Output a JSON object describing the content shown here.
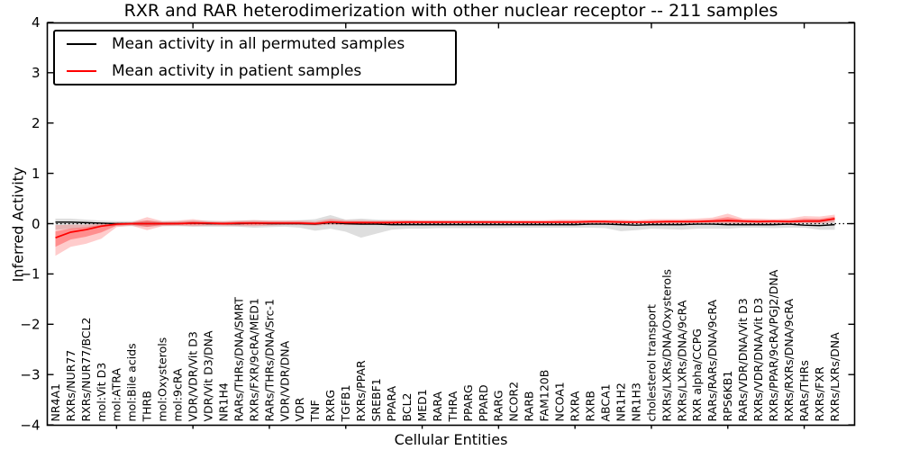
{
  "chart_data": {
    "type": "line",
    "title": "RXR and RAR heterodimerization with other nuclear receptor -- 211 samples",
    "xlabel": "Cellular Entities",
    "ylabel": "Inferred Activity",
    "ylim": [
      -4,
      4
    ],
    "yticks": [
      -4,
      -3,
      -2,
      -1,
      0,
      1,
      2,
      3,
      4
    ],
    "ytick_labels": [
      "−4",
      "−3",
      "−2",
      "−1",
      "0",
      "1",
      "2",
      "3",
      "4"
    ],
    "grid": false,
    "zero_line": {
      "y": 0,
      "style": "dotted",
      "color": "#000000"
    },
    "legend": {
      "position": "upper left",
      "entries": [
        {
          "label": "Mean activity in all permuted samples",
          "color": "#000000"
        },
        {
          "label": "Mean activity in patient samples",
          "color": "#ff0000"
        }
      ]
    },
    "categories": [
      "NR4A1",
      "RXRs/NUR77",
      "RXRs/NUR77/BCL2",
      "mol:Vit D3",
      "mol:ATRA",
      "mol:Bile acids",
      "THRB",
      "mol:Oxysterols",
      "mol:9cRA",
      "VDR/VDR/Vit D3",
      "VDR/Vit D3/DNA",
      "NR1H4",
      "RARs/THRs/DNA/SMRT",
      "RXRs/FXR/9cRA/MED1",
      "RARs/THRs/DNA/Src-1",
      "VDR/VDR/DNA",
      "VDR",
      "TNF",
      "RXRG",
      "TGFB1",
      "RXRs/PPAR",
      "SREBF1",
      "PPARA",
      "BCL2",
      "MED1",
      "RARA",
      "THRA",
      "PPARG",
      "PPARD",
      "RARG",
      "NCOR2",
      "RARB",
      "FAM120B",
      "NCOA1",
      "RXRA",
      "RXRB",
      "ABCA1",
      "NR1H2",
      "NR1H3",
      "cholesterol transport",
      "RXRs/LXRs/DNA/Oxysterols",
      "RXRs/LXRs/DNA/9cRA",
      "RXR alpha/CCPG",
      "RARs/RARs/DNA/9cRA",
      "RPS6KB1",
      "RARs/VDR/DNA/Vit D3",
      "RXRs/VDR/DNA/Vit D3",
      "RXRs/PPAR/9cRA/PGJ2/DNA",
      "RXRs/RXRs/DNA/9cRA",
      "RARs/THRs",
      "RXRs/FXR",
      "RXRs/LXRs/DNA"
    ],
    "series": [
      {
        "name": "Mean activity in all permuted samples",
        "color": "#000000",
        "band_color": "#999999",
        "values": [
          0.03,
          0.03,
          0.02,
          0.01,
          0,
          0,
          0,
          0,
          0,
          0.01,
          0,
          0,
          0,
          0.01,
          0,
          0,
          0,
          -0.01,
          0.02,
          0,
          -0.01,
          -0.01,
          -0.02,
          -0.02,
          -0.02,
          -0.02,
          -0.02,
          -0.02,
          -0.02,
          -0.02,
          -0.02,
          -0.02,
          -0.02,
          -0.02,
          -0.02,
          -0.01,
          -0.01,
          -0.02,
          -0.03,
          -0.02,
          -0.02,
          -0.02,
          -0.01,
          -0.01,
          -0.02,
          -0.02,
          -0.02,
          -0.02,
          -0.01,
          -0.03,
          -0.04,
          -0.02
        ],
        "band_low": [
          -0.12,
          -0.1,
          -0.08,
          -0.06,
          -0.05,
          -0.05,
          -0.06,
          -0.05,
          -0.05,
          -0.06,
          -0.06,
          -0.06,
          -0.06,
          -0.08,
          -0.07,
          -0.06,
          -0.08,
          -0.14,
          -0.1,
          -0.16,
          -0.28,
          -0.2,
          -0.12,
          -0.1,
          -0.1,
          -0.09,
          -0.09,
          -0.09,
          -0.09,
          -0.09,
          -0.08,
          -0.08,
          -0.08,
          -0.08,
          -0.08,
          -0.08,
          -0.09,
          -0.15,
          -0.13,
          -0.1,
          -0.11,
          -0.12,
          -0.1,
          -0.1,
          -0.1,
          -0.08,
          -0.08,
          -0.09,
          -0.08,
          -0.08,
          -0.12,
          -0.12
        ],
        "band_high": [
          0.1,
          0.1,
          0.08,
          0.06,
          0.05,
          0.05,
          0.06,
          0.05,
          0.05,
          0.06,
          0.06,
          0.05,
          0.06,
          0.07,
          0.06,
          0.06,
          0.07,
          0.09,
          0.17,
          0.08,
          0.1,
          0.08,
          0.07,
          0.07,
          0.06,
          0.06,
          0.06,
          0.06,
          0.06,
          0.06,
          0.05,
          0.05,
          0.05,
          0.05,
          0.05,
          0.05,
          0.05,
          0.06,
          0.05,
          0.05,
          0.05,
          0.05,
          0.05,
          0.06,
          0.08,
          0.06,
          0.06,
          0.06,
          0.06,
          0.07,
          0.08,
          0.1
        ]
      },
      {
        "name": "Mean activity in patient samples",
        "color": "#ff0000",
        "band_color": "#ff3333",
        "values": [
          -0.28,
          -0.17,
          -0.12,
          -0.05,
          -0.01,
          0,
          0,
          0,
          0,
          0.01,
          0.01,
          0,
          0.01,
          0.01,
          0.01,
          0.01,
          0.01,
          0,
          0.03,
          0.02,
          0.02,
          0.02,
          0.02,
          0.03,
          0.03,
          0.03,
          0.03,
          0.03,
          0.03,
          0.03,
          0.03,
          0.03,
          0.03,
          0.03,
          0.03,
          0.04,
          0.04,
          0.03,
          0.03,
          0.03,
          0.04,
          0.04,
          0.04,
          0.05,
          0.06,
          0.05,
          0.04,
          0.05,
          0.04,
          0.05,
          0.05,
          0.1
        ],
        "band_low": [
          -0.64,
          -0.46,
          -0.4,
          -0.3,
          -0.07,
          -0.04,
          -0.13,
          -0.05,
          -0.04,
          -0.05,
          -0.04,
          -0.04,
          -0.05,
          -0.05,
          -0.04,
          -0.03,
          -0.03,
          -0.04,
          -0.02,
          -0.03,
          -0.02,
          -0.02,
          -0.02,
          -0.01,
          -0.01,
          -0.01,
          0,
          0,
          0,
          0,
          0,
          0,
          0,
          0,
          0,
          0,
          0,
          0,
          0,
          0,
          0,
          0,
          0.01,
          0.01,
          0,
          0,
          0,
          0,
          0,
          0.01,
          0,
          0.03
        ],
        "band_high": [
          -0.03,
          -0.02,
          -0.02,
          0,
          0.03,
          0.03,
          0.13,
          0.05,
          0.06,
          0.09,
          0.05,
          0.05,
          0.06,
          0.07,
          0.06,
          0.06,
          0.06,
          0.05,
          0.1,
          0.07,
          0.07,
          0.06,
          0.07,
          0.07,
          0.07,
          0.07,
          0.07,
          0.07,
          0.07,
          0.07,
          0.07,
          0.07,
          0.07,
          0.08,
          0.08,
          0.08,
          0.08,
          0.08,
          0.07,
          0.09,
          0.09,
          0.09,
          0.1,
          0.12,
          0.2,
          0.1,
          0.1,
          0.09,
          0.1,
          0.15,
          0.14,
          0.18
        ]
      }
    ]
  }
}
